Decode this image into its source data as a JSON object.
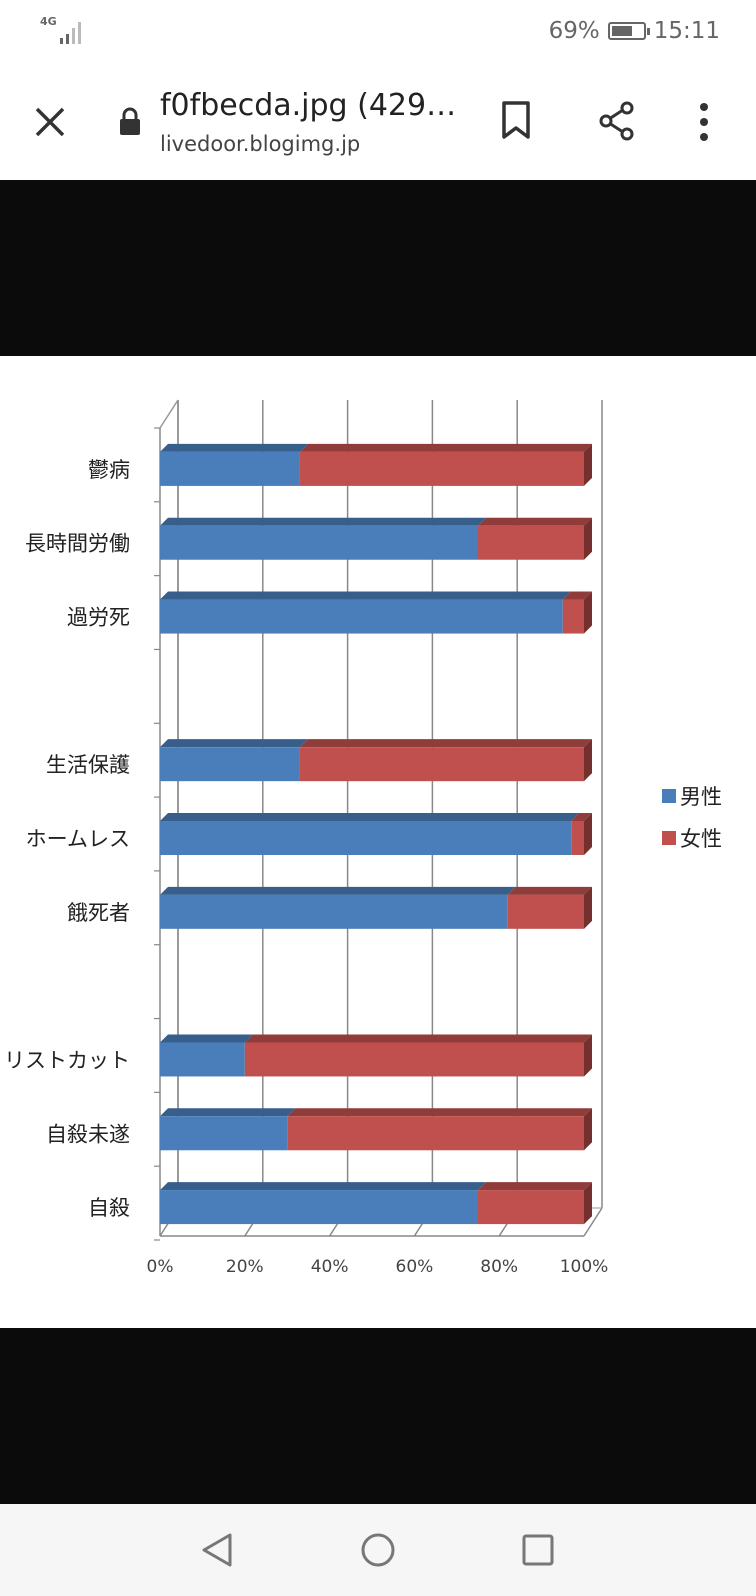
{
  "status_bar": {
    "network": "4G",
    "battery_percent": "69%",
    "battery_level": 0.69,
    "time": "15:11"
  },
  "toolbar": {
    "title": "f0fbecda.jpg (429…",
    "url": "livedoor.blogimg.jp",
    "icons": [
      "close-icon",
      "lock-icon",
      "bookmark-icon",
      "share-icon",
      "more-icon"
    ]
  },
  "chart_data": {
    "type": "bar",
    "orientation": "horizontal",
    "stacked": "percent",
    "categories": [
      "鬱病",
      "長時間労働",
      "過労死",
      "",
      "生活保護",
      "ホームレス",
      "餓死者",
      "",
      "リストカット",
      "自殺未遂",
      "自殺"
    ],
    "series": [
      {
        "name": "男性",
        "color": "#4a7ebb",
        "values": [
          33,
          75,
          95,
          null,
          33,
          97,
          82,
          null,
          20,
          30,
          75
        ]
      },
      {
        "name": "女性",
        "color": "#c0504d",
        "values": [
          67,
          25,
          5,
          null,
          67,
          3,
          18,
          null,
          80,
          70,
          25
        ]
      }
    ],
    "xticks": [
      "0%",
      "20%",
      "40%",
      "60%",
      "80%",
      "100%"
    ],
    "xlim": [
      0,
      100
    ],
    "grid": true,
    "legend": "right",
    "style": "3d"
  },
  "nav": {
    "icons": [
      "back-icon",
      "home-icon",
      "recents-icon"
    ]
  }
}
